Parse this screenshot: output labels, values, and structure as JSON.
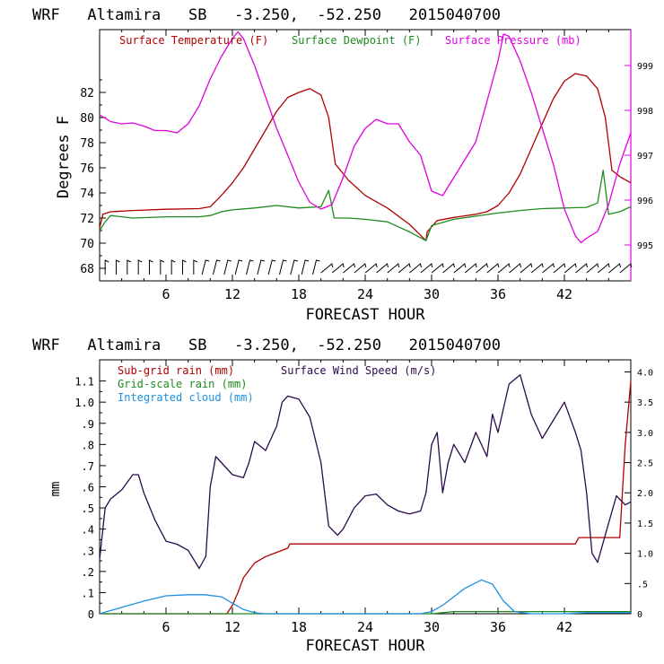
{
  "colors": {
    "temperature": "#b00000",
    "dewpoint": "#1e8a1e",
    "pressure": "#e000e0",
    "subgrid_rain": "#b00000",
    "gridscale_rain": "#1e8a1e",
    "integrated_cloud": "#1e90e0",
    "wind_speed": "#2a0a4a",
    "barbs": "#000000"
  },
  "chart_data": [
    {
      "type": "line",
      "title": "WRF   Altamira   SB   -3.250,  -52.250   2015040700",
      "xlabel": "FORECAST HOUR",
      "ylabel": "Degrees F",
      "xlim": [
        0,
        48
      ],
      "xticks": [
        6,
        12,
        18,
        24,
        30,
        36,
        42
      ],
      "ylim": [
        67,
        87
      ],
      "yticks": [
        68,
        70,
        72,
        74,
        76,
        78,
        80,
        82
      ],
      "y2lim": [
        994.2,
        999.8
      ],
      "y2ticks": [
        995,
        996,
        997,
        998,
        999
      ],
      "legend": [
        "Surface Temperature (F)",
        "Surface Dewpoint (F)",
        "Surface Pressure (mb)"
      ],
      "series": [
        {
          "name": "Surface Temperature (F)",
          "axis": "left",
          "points": [
            [
              0,
              71.2
            ],
            [
              0.3,
              72.3
            ],
            [
              1,
              72.5
            ],
            [
              3,
              72.6
            ],
            [
              6,
              72.7
            ],
            [
              9,
              72.75
            ],
            [
              10,
              72.9
            ],
            [
              11,
              73.8
            ],
            [
              12,
              74.8
            ],
            [
              13,
              76
            ],
            [
              14,
              77.5
            ],
            [
              15,
              79
            ],
            [
              16,
              80.5
            ],
            [
              17,
              81.6
            ],
            [
              18,
              82
            ],
            [
              19,
              82.3
            ],
            [
              20,
              81.8
            ],
            [
              20.7,
              80
            ],
            [
              21.3,
              76.3
            ],
            [
              22.5,
              75
            ],
            [
              24,
              73.8
            ],
            [
              26,
              72.8
            ],
            [
              28,
              71.5
            ],
            [
              29.5,
              70.2
            ],
            [
              29.6,
              70.9
            ],
            [
              30.5,
              71.8
            ],
            [
              32,
              72.05
            ],
            [
              34,
              72.3
            ],
            [
              35,
              72.5
            ],
            [
              36,
              73
            ],
            [
              37,
              74
            ],
            [
              38,
              75.5
            ],
            [
              39,
              77.5
            ],
            [
              40,
              79.5
            ],
            [
              41,
              81.5
            ],
            [
              42,
              82.9
            ],
            [
              43,
              83.5
            ],
            [
              44,
              83.3
            ],
            [
              45,
              82.3
            ],
            [
              45.7,
              80
            ],
            [
              46.3,
              75.8
            ],
            [
              47,
              75.3
            ],
            [
              48,
              74.8
            ]
          ]
        },
        {
          "name": "Surface Dewpoint (F)",
          "axis": "left",
          "points": [
            [
              0,
              71
            ],
            [
              0.5,
              71.7
            ],
            [
              1,
              72.2
            ],
            [
              3,
              72
            ],
            [
              6,
              72.1
            ],
            [
              9,
              72.1
            ],
            [
              10,
              72.2
            ],
            [
              11,
              72.5
            ],
            [
              12,
              72.65
            ],
            [
              14,
              72.8
            ],
            [
              16,
              73
            ],
            [
              18,
              72.8
            ],
            [
              20,
              72.9
            ],
            [
              20.7,
              74.2
            ],
            [
              21.2,
              72
            ],
            [
              22.5,
              72
            ],
            [
              24,
              71.9
            ],
            [
              26,
              71.7
            ],
            [
              28,
              70.9
            ],
            [
              29.5,
              70.2
            ],
            [
              30,
              71.4
            ],
            [
              32,
              71.9
            ],
            [
              34,
              72.15
            ],
            [
              36,
              72.4
            ],
            [
              38,
              72.6
            ],
            [
              40,
              72.75
            ],
            [
              42,
              72.8
            ],
            [
              44,
              72.85
            ],
            [
              45,
              73.2
            ],
            [
              45.5,
              75.8
            ],
            [
              46,
              72.3
            ],
            [
              47,
              72.5
            ],
            [
              48,
              72.9
            ]
          ]
        },
        {
          "name": "Surface Pressure (mb)",
          "axis": "right",
          "points": [
            [
              0,
              997.9
            ],
            [
              1,
              997.75
            ],
            [
              2,
              997.7
            ],
            [
              3,
              997.72
            ],
            [
              4,
              997.65
            ],
            [
              5,
              997.55
            ],
            [
              6,
              997.55
            ],
            [
              7,
              997.5
            ],
            [
              8,
              997.7
            ],
            [
              9,
              998.1
            ],
            [
              10,
              998.7
            ],
            [
              11,
              999.2
            ],
            [
              12,
              999.6
            ],
            [
              12.5,
              999.75
            ],
            [
              13,
              999.6
            ],
            [
              14,
              999
            ],
            [
              15,
              998.3
            ],
            [
              16,
              997.6
            ],
            [
              17,
              997
            ],
            [
              18,
              996.4
            ],
            [
              19,
              995.95
            ],
            [
              20,
              995.8
            ],
            [
              21,
              995.9
            ],
            [
              22,
              996.5
            ],
            [
              23,
              997.2
            ],
            [
              24,
              997.6
            ],
            [
              25,
              997.8
            ],
            [
              26,
              997.7
            ],
            [
              27,
              997.7
            ],
            [
              28,
              997.3
            ],
            [
              29,
              997
            ],
            [
              30,
              996.2
            ],
            [
              31,
              996.1
            ],
            [
              32,
              996.5
            ],
            [
              33,
              996.9
            ],
            [
              34,
              997.3
            ],
            [
              35,
              998.2
            ],
            [
              36,
              999.1
            ],
            [
              36.5,
              999.7
            ],
            [
              37,
              999.65
            ],
            [
              38,
              999.1
            ],
            [
              39,
              998.4
            ],
            [
              40,
              997.6
            ],
            [
              41,
              996.8
            ],
            [
              42,
              995.8
            ],
            [
              43,
              995.2
            ],
            [
              43.5,
              995.05
            ],
            [
              44,
              995.15
            ],
            [
              45,
              995.3
            ],
            [
              46,
              995.9
            ],
            [
              47,
              996.8
            ],
            [
              48,
              997.5
            ]
          ]
        }
      ],
      "wind_barb_count": 48
    },
    {
      "type": "line",
      "title": "WRF   Altamira   SB   -3.250,  -52.250   2015040700",
      "xlabel": "FORECAST HOUR",
      "ylabel": "mm",
      "xlim": [
        0,
        48
      ],
      "xticks": [
        6,
        12,
        18,
        24,
        30,
        36,
        42
      ],
      "ylim": [
        0,
        1.2
      ],
      "yticks": [
        0,
        0.1,
        0.2,
        0.3,
        0.4,
        0.5,
        0.6,
        0.7,
        0.8,
        0.9,
        1.0,
        1.1
      ],
      "ytick_labels": [
        "0",
        ".1",
        ".2",
        ".3",
        ".4",
        ".5",
        ".6",
        ".7",
        ".8",
        ".9",
        "1.0",
        "1.1"
      ],
      "y2lim": [
        0,
        4.2
      ],
      "y2ticks": [
        0,
        0.5,
        1.0,
        1.5,
        2.0,
        2.5,
        3.0,
        3.5,
        4.0
      ],
      "y2tick_labels": [
        "0",
        ".5",
        "1.0",
        "1.5",
        "2.0",
        "2.5",
        "3.0",
        "3.5",
        "4.0"
      ],
      "legend": [
        "Sub-grid rain (mm)",
        "Surface Wind Speed (m/s)",
        "Grid-scale rain (mm)",
        "Integrated cloud (mm)"
      ],
      "series": [
        {
          "name": "Sub-grid rain (mm)",
          "axis": "left",
          "points": [
            [
              0,
              0
            ],
            [
              11.5,
              0
            ],
            [
              12,
              0.04
            ],
            [
              12.5,
              0.1
            ],
            [
              13,
              0.17
            ],
            [
              14,
              0.24
            ],
            [
              15,
              0.27
            ],
            [
              16,
              0.29
            ],
            [
              17,
              0.31
            ],
            [
              17.2,
              0.33
            ],
            [
              43,
              0.33
            ],
            [
              43.3,
              0.36
            ],
            [
              47,
              0.36
            ],
            [
              47.5,
              0.8
            ],
            [
              48,
              1.1
            ]
          ]
        },
        {
          "name": "Grid-scale rain (mm)",
          "axis": "left",
          "points": [
            [
              0,
              0
            ],
            [
              30,
              0
            ],
            [
              32,
              0.01
            ],
            [
              48,
              0.01
            ]
          ]
        },
        {
          "name": "Integrated cloud (mm)",
          "axis": "left",
          "points": [
            [
              0,
              0
            ],
            [
              2,
              0.03
            ],
            [
              4,
              0.06
            ],
            [
              6,
              0.085
            ],
            [
              8,
              0.09
            ],
            [
              9.5,
              0.09
            ],
            [
              11,
              0.08
            ],
            [
              12,
              0.05
            ],
            [
              13,
              0.02
            ],
            [
              14,
              0.005
            ],
            [
              15,
              0
            ],
            [
              29,
              0
            ],
            [
              30,
              0.01
            ],
            [
              31,
              0.04
            ],
            [
              32,
              0.08
            ],
            [
              33,
              0.12
            ],
            [
              34.5,
              0.16
            ],
            [
              35.5,
              0.14
            ],
            [
              36.5,
              0.06
            ],
            [
              37.5,
              0.01
            ],
            [
              39,
              0
            ],
            [
              42,
              0
            ],
            [
              44,
              0.005
            ],
            [
              48,
              0.005
            ]
          ]
        },
        {
          "name": "Surface Wind Speed (m/s)",
          "axis": "right",
          "points": [
            [
              0,
              0.9
            ],
            [
              0.5,
              1.75
            ],
            [
              1,
              1.9
            ],
            [
              2,
              2.05
            ],
            [
              3,
              2.3
            ],
            [
              3.5,
              2.3
            ],
            [
              4,
              2
            ],
            [
              5,
              1.55
            ],
            [
              6,
              1.2
            ],
            [
              7,
              1.15
            ],
            [
              8,
              1.05
            ],
            [
              9,
              0.75
            ],
            [
              9.6,
              0.95
            ],
            [
              10,
              2.1
            ],
            [
              10.5,
              2.6
            ],
            [
              11,
              2.5
            ],
            [
              12,
              2.3
            ],
            [
              13,
              2.25
            ],
            [
              13.5,
              2.5
            ],
            [
              14,
              2.85
            ],
            [
              15,
              2.7
            ],
            [
              16,
              3.1
            ],
            [
              16.5,
              3.5
            ],
            [
              17,
              3.6
            ],
            [
              18,
              3.55
            ],
            [
              19,
              3.25
            ],
            [
              20,
              2.5
            ],
            [
              20.7,
              1.45
            ],
            [
              21.5,
              1.3
            ],
            [
              22,
              1.4
            ],
            [
              23,
              1.75
            ],
            [
              24,
              1.95
            ],
            [
              25,
              1.98
            ],
            [
              26,
              1.8
            ],
            [
              27,
              1.7
            ],
            [
              28,
              1.65
            ],
            [
              29,
              1.7
            ],
            [
              29.5,
              2.0
            ],
            [
              30,
              2.8
            ],
            [
              30.5,
              3.0
            ],
            [
              31,
              2.0
            ],
            [
              31.5,
              2.5
            ],
            [
              32,
              2.8
            ],
            [
              33,
              2.5
            ],
            [
              34,
              3.0
            ],
            [
              35,
              2.6
            ],
            [
              35.5,
              3.3
            ],
            [
              36,
              3.0
            ],
            [
              37,
              3.8
            ],
            [
              38,
              3.95
            ],
            [
              39,
              3.3
            ],
            [
              40,
              2.9
            ],
            [
              41,
              3.2
            ],
            [
              42,
              3.5
            ],
            [
              43,
              3.0
            ],
            [
              43.5,
              2.7
            ],
            [
              44,
              2.0
            ],
            [
              44.5,
              1.0
            ],
            [
              45,
              0.85
            ],
            [
              46,
              1.5
            ],
            [
              46.7,
              1.95
            ],
            [
              47.5,
              1.8
            ],
            [
              48,
              1.85
            ]
          ]
        }
      ]
    }
  ]
}
